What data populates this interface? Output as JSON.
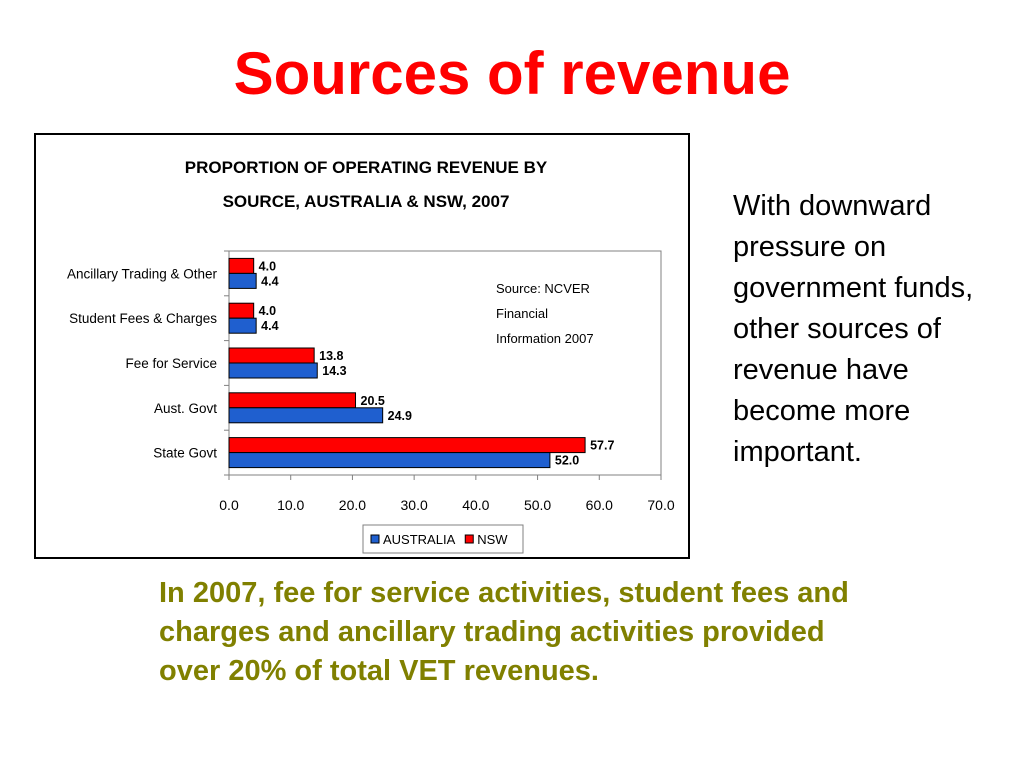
{
  "slide": {
    "title": "Sources of revenue",
    "side_text": "With downward pressure on government funds, other sources of revenue have become more important.",
    "bottom_text": "In 2007, fee for service activities, student fees and charges and ancillary trading activities provided over 20% of total VET revenues."
  },
  "chart_data": {
    "type": "bar",
    "orientation": "horizontal",
    "title_lines": [
      "PROPORTION OF OPERATING REVENUE BY",
      "SOURCE, AUSTRALIA & NSW, 2007"
    ],
    "annotation_lines": [
      "Source: NCVER",
      "Financial",
      "Information 2007"
    ],
    "categories": [
      "Ancillary Trading & Other",
      "Student Fees & Charges",
      "Fee for Service",
      "Aust. Govt",
      "State Govt"
    ],
    "series": [
      {
        "name": "NSW",
        "values": [
          4.0,
          4.0,
          13.8,
          20.5,
          57.7
        ],
        "color": "#ff0000"
      },
      {
        "name": "AUSTRALIA",
        "values": [
          4.4,
          4.4,
          14.3,
          24.9,
          52.0
        ],
        "color": "#1f5fcf"
      }
    ],
    "xlim": [
      0,
      70
    ],
    "xticks": [
      "0.0",
      "10.0",
      "20.0",
      "30.0",
      "40.0",
      "50.0",
      "60.0",
      "70.0"
    ],
    "legend_order": [
      "AUSTRALIA",
      "NSW"
    ],
    "legend_position": "bottom",
    "grid": false
  }
}
